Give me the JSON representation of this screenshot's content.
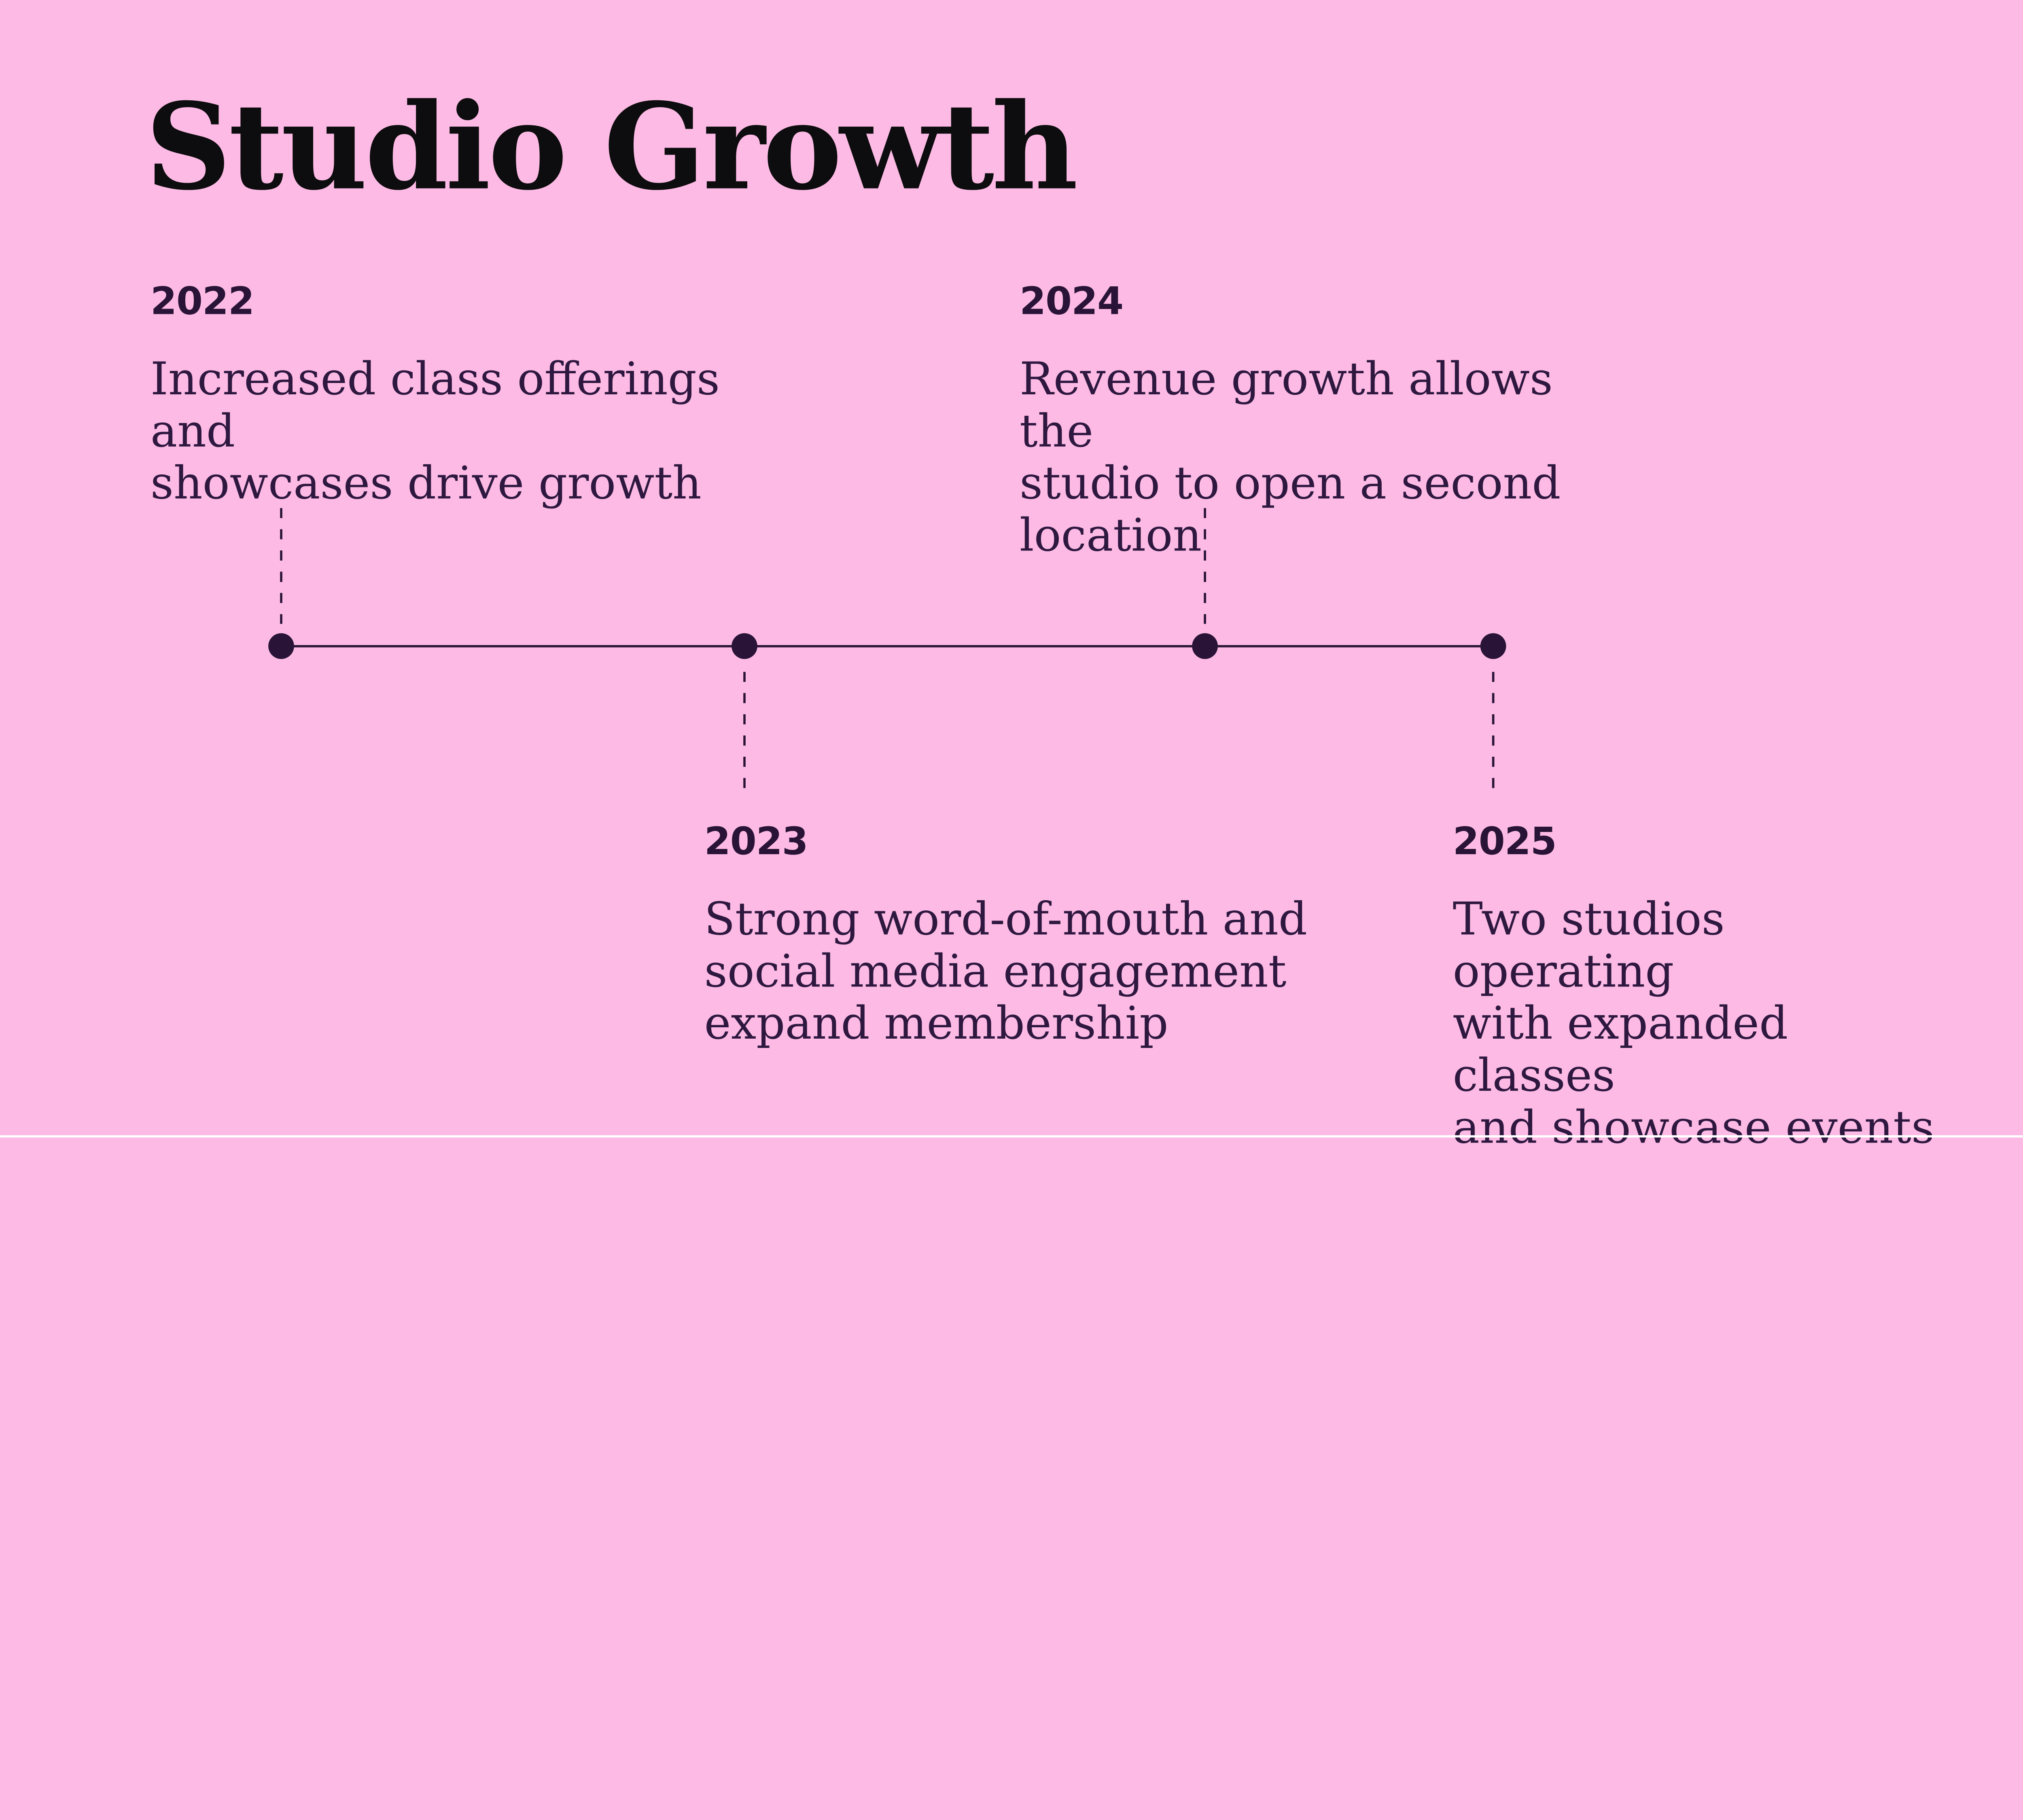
{
  "slide": {
    "title": "Studio Growth",
    "colors": {
      "background": "#FCBAE4",
      "ink": "#291437",
      "body_text": "#2E1840",
      "title_text": "#0D0C0E",
      "footer_strip": "#FFFFFF"
    }
  },
  "timeline": {
    "events": [
      {
        "year": "2022",
        "description": "Increased class offerings and\nshowcases drive growth",
        "position": "above"
      },
      {
        "year": "2023",
        "description": "Strong word-of-mouth and\nsocial media engagement\nexpand membership",
        "position": "below"
      },
      {
        "year": "2024",
        "description": "Revenue growth allows the\nstudio to open a second\nlocation",
        "position": "above"
      },
      {
        "year": "2025",
        "description": "Two studios operating\nwith expanded classes\nand showcase events",
        "position": "below"
      }
    ]
  }
}
